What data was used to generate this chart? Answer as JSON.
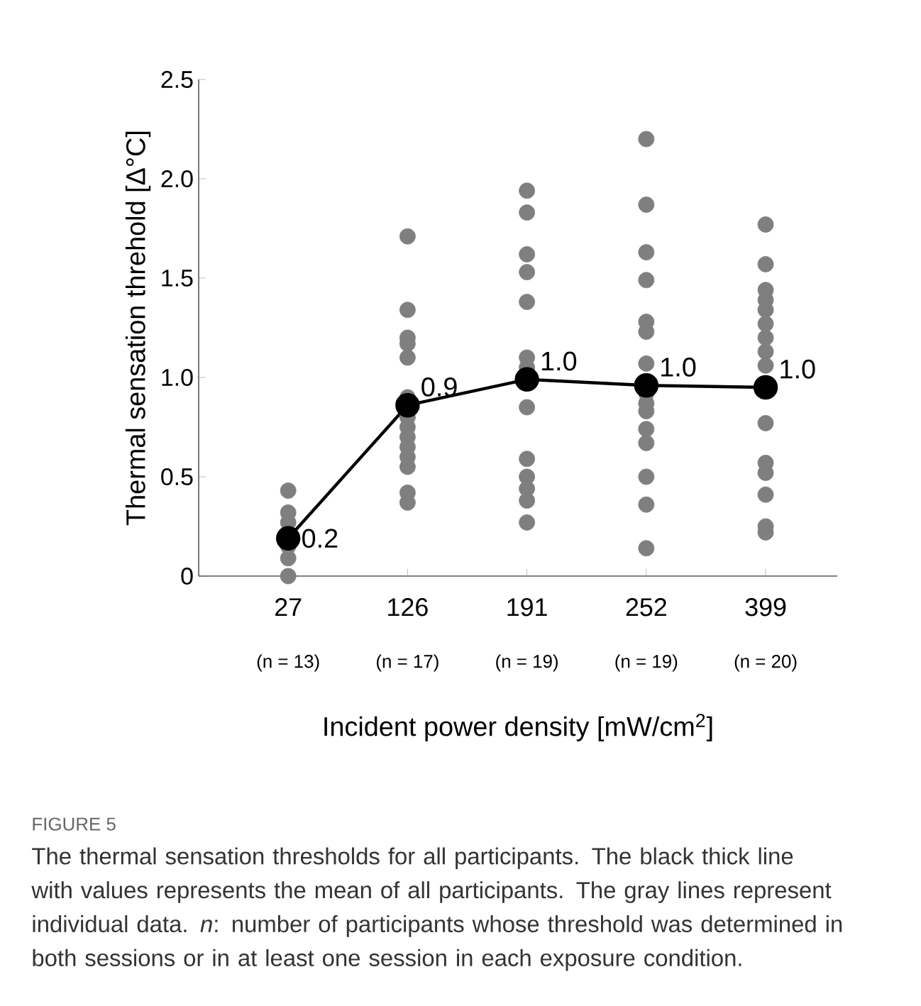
{
  "chart_data": {
    "type": "line",
    "title": "FIGURE 5",
    "annotations": [
      "(n = 13)",
      "(n = 17)",
      "(n = 19)",
      "(n = 19)",
      "(n = 20)",
      "The thermal sensation thresholds for all participants. The black thick line with values represents the mean of all participants. The gray lines represent individual data. *n*: number of participants whose threshold was determined in both sessions or in at least one session in each exposure condition."
    ],
    "xlabel": "Incident power density [mW/cm$^{2}$]",
    "ylabel": "Thermal sensation threhold [Δ°C]",
    "categories": [
      "27",
      "126",
      "191",
      "252",
      "399"
    ],
    "ylim": [
      0,
      2.5
    ],
    "yticks": [
      0,
      0.5,
      {
        "value": 1,
        "label": "1.0"
      },
      1.5,
      {
        "value": 2,
        "label": "2.0"
      },
      2.5
    ],
    "grid": false,
    "series": [
      {
        "type": "scatter",
        "color": "#7f7f7f",
        "marker": "circle",
        "x": [
          "27",
          "27",
          "27",
          "27",
          "27",
          "27",
          "126",
          "126",
          "126",
          "126",
          "126",
          "126",
          "126",
          "126",
          "126",
          "126",
          "126",
          "126",
          "126",
          "126",
          "191",
          "191",
          "191",
          "191",
          "191",
          "191",
          "191",
          "191",
          "191",
          "191",
          "191",
          "191",
          "191",
          "252",
          "252",
          "252",
          "252",
          "252",
          "252",
          "252",
          "252",
          "252",
          "252",
          "252",
          "252",
          "252",
          "252",
          "252",
          "399",
          "399",
          "399",
          "399",
          "399",
          "399",
          "399",
          "399",
          "399",
          "399",
          "399",
          "399",
          "399",
          "399",
          "399"
        ],
        "values": [
          0.43,
          0.32,
          0.27,
          0.15,
          0.09,
          0.0,
          1.71,
          1.34,
          1.2,
          1.17,
          1.1,
          0.9,
          0.8,
          0.75,
          0.7,
          0.65,
          0.6,
          0.55,
          0.42,
          0.37,
          1.94,
          1.83,
          1.62,
          1.53,
          1.38,
          1.1,
          1.05,
          0.85,
          0.59,
          0.5,
          0.44,
          0.38,
          0.27,
          2.2,
          1.87,
          1.63,
          1.49,
          1.28,
          1.23,
          1.07,
          0.92,
          0.87,
          0.83,
          0.74,
          0.67,
          0.5,
          0.36,
          0.14,
          1.77,
          1.57,
          1.44,
          1.39,
          1.34,
          1.27,
          1.2,
          1.13,
          1.06,
          0.77,
          0.57,
          0.52,
          0.41,
          0.25,
          0.22
        ]
      },
      {
        "type": "line",
        "color": "#000000",
        "marker": "circle",
        "values": [
          0.19,
          0.86,
          0.99,
          0.96,
          0.95
        ],
        "value_labels": [
          "0.2",
          "0.9",
          "1.0",
          "1.0",
          "1.0"
        ]
      }
    ]
  }
}
